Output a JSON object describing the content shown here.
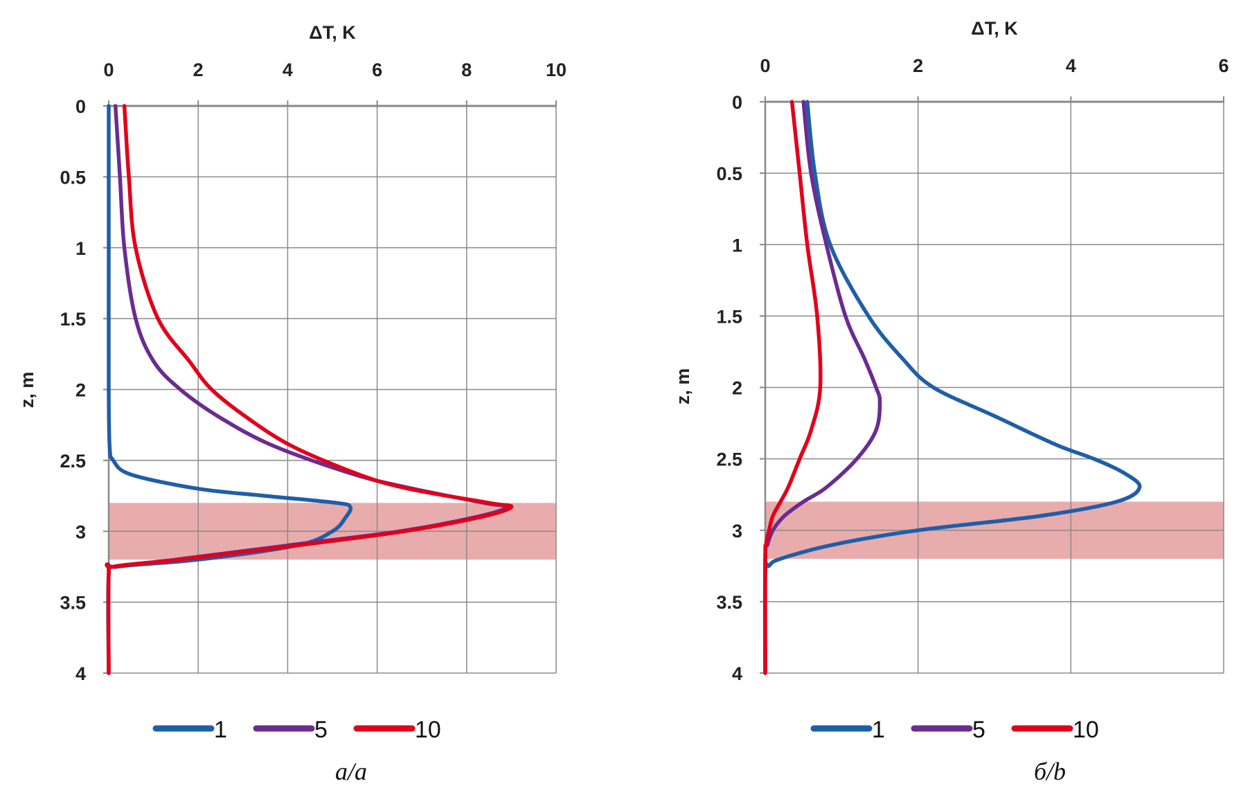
{
  "chart_data": [
    {
      "type": "line",
      "panel_label": "a/a",
      "xlabel": "ΔT, K",
      "ylabel": "z, m",
      "xlim": [
        0,
        10
      ],
      "ylim": [
        0,
        4
      ],
      "y_inverted": true,
      "x_axis_position": "top",
      "xticks": [
        "0",
        "2",
        "4",
        "6",
        "8",
        "10"
      ],
      "yticks": [
        "0",
        "0.5",
        "1",
        "1.5",
        "2",
        "2.5",
        "3",
        "3.5",
        "4"
      ],
      "grid": true,
      "highlight_band_z": [
        2.8,
        3.2
      ],
      "legend_position": "bottom",
      "series": [
        {
          "name": "1",
          "color": "#1f5ea8",
          "z": [
            0,
            1,
            2,
            2.4,
            2.5,
            2.6,
            2.7,
            2.75,
            2.8,
            2.83,
            2.9,
            3.0,
            3.1,
            3.2,
            3.25,
            3.3,
            4
          ],
          "dT": [
            0,
            0,
            0,
            0.02,
            0.1,
            0.5,
            2.0,
            3.5,
            5.1,
            5.4,
            5.3,
            5.0,
            4.2,
            2.0,
            0.2,
            0,
            0
          ]
        },
        {
          "name": "5",
          "color": "#6a2c91",
          "z": [
            0,
            0.5,
            1,
            1.5,
            1.8,
            2,
            2.2,
            2.4,
            2.6,
            2.7,
            2.8,
            2.83,
            2.9,
            3.0,
            3.1,
            3.2,
            3.25,
            3.3,
            4
          ],
          "dT": [
            0.15,
            0.25,
            0.35,
            0.6,
            1.0,
            1.6,
            2.5,
            3.7,
            5.5,
            6.8,
            8.4,
            8.9,
            8.2,
            6.5,
            4.0,
            1.5,
            0.1,
            0,
            0
          ]
        },
        {
          "name": "10",
          "color": "#e2001a",
          "z": [
            0,
            0.5,
            1,
            1.5,
            1.8,
            2,
            2.2,
            2.4,
            2.6,
            2.7,
            2.8,
            2.83,
            2.9,
            3.0,
            3.1,
            3.2,
            3.25,
            3.3,
            4
          ],
          "dT": [
            0.35,
            0.45,
            0.6,
            1.1,
            1.8,
            2.3,
            3.1,
            4.1,
            5.6,
            6.7,
            8.5,
            9.0,
            8.3,
            6.6,
            4.2,
            1.6,
            0.1,
            0,
            0
          ]
        }
      ]
    },
    {
      "type": "line",
      "panel_label": "б/b",
      "xlabel": "ΔT, K",
      "ylabel": "z, m",
      "xlim": [
        0,
        6
      ],
      "ylim": [
        0,
        4
      ],
      "y_inverted": true,
      "x_axis_position": "top",
      "xticks": [
        "0",
        "2",
        "4",
        "6"
      ],
      "yticks": [
        "0",
        "0.5",
        "1",
        "1.5",
        "2",
        "2.5",
        "3",
        "3.5",
        "4"
      ],
      "grid": true,
      "highlight_band_z": [
        2.8,
        3.2
      ],
      "legend_position": "bottom",
      "series": [
        {
          "name": "1",
          "color": "#1f5ea8",
          "z": [
            0,
            0.5,
            1,
            1.5,
            1.8,
            2,
            2.2,
            2.4,
            2.5,
            2.6,
            2.7,
            2.8,
            2.9,
            3.0,
            3.1,
            3.2,
            3.25,
            3.3,
            4
          ],
          "dT": [
            0.55,
            0.65,
            0.85,
            1.35,
            1.8,
            2.2,
            3.0,
            3.8,
            4.3,
            4.7,
            4.9,
            4.6,
            3.6,
            2.0,
            0.9,
            0.2,
            0.05,
            0,
            0
          ]
        },
        {
          "name": "5",
          "color": "#6a2c91",
          "z": [
            0,
            0.5,
            1,
            1.5,
            1.8,
            2,
            2.1,
            2.3,
            2.5,
            2.7,
            2.8,
            2.9,
            3.0,
            3.1,
            3.2,
            4
          ],
          "dT": [
            0.5,
            0.6,
            0.8,
            1.05,
            1.3,
            1.45,
            1.5,
            1.45,
            1.2,
            0.8,
            0.5,
            0.25,
            0.1,
            0.03,
            0,
            0
          ]
        },
        {
          "name": "10",
          "color": "#e2001a",
          "z": [
            0,
            0.5,
            1,
            1.5,
            2,
            2.3,
            2.5,
            2.7,
            2.8,
            2.9,
            3.0,
            3.1,
            3.2,
            4
          ],
          "dT": [
            0.35,
            0.45,
            0.55,
            0.68,
            0.72,
            0.6,
            0.45,
            0.3,
            0.2,
            0.1,
            0.05,
            0.01,
            0,
            0
          ]
        }
      ]
    }
  ]
}
